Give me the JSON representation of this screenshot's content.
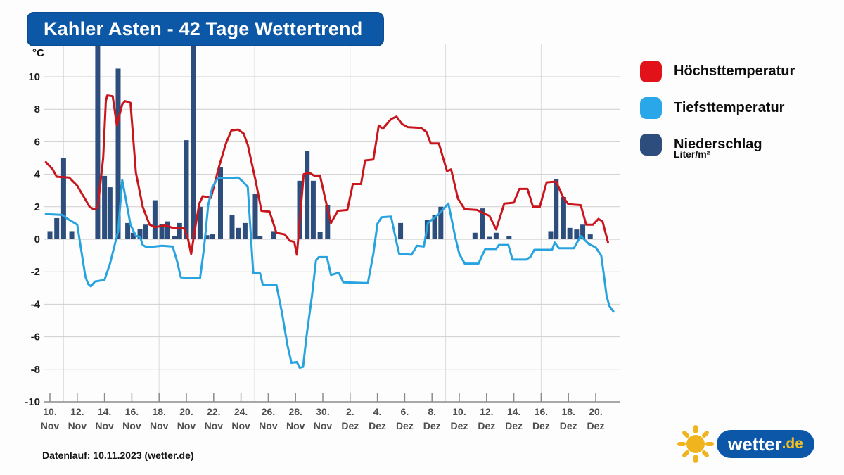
{
  "header": {
    "title": "Kahler Asten - 42 Tage Wettertrend"
  },
  "footer": {
    "text": "Datenlauf: 10.11.2023 (wetter.de)"
  },
  "logo": {
    "brand": "wetter",
    "tld": ".de",
    "pill_color": "#0d57a8",
    "sun_color": "#f0b41e"
  },
  "legend": {
    "items": [
      {
        "label": "Höchsttemperatur",
        "color": "#e2121b"
      },
      {
        "label": "Tiefsttemperatur",
        "color": "#2aa7e8"
      },
      {
        "label": "Niederschlag",
        "color": "#2d4e7d"
      }
    ],
    "precip_unit": "Liter/m²"
  },
  "chart_data": {
    "type": "mixed",
    "title": "Kahler Asten - 42 Tage Wettertrend",
    "y_axis": {
      "unit": "°C",
      "min": -10,
      "max": 10,
      "ticks": [
        10,
        8,
        6,
        4,
        2,
        0,
        -2,
        -4,
        -6,
        -8,
        -10
      ],
      "grid": true
    },
    "x_axis": {
      "unit": "date",
      "days_per_tick": 2,
      "tick_labels": [
        {
          "d": "10.",
          "m": "Nov"
        },
        {
          "d": "12.",
          "m": "Nov"
        },
        {
          "d": "14.",
          "m": "Nov"
        },
        {
          "d": "16.",
          "m": "Nov"
        },
        {
          "d": "18.",
          "m": "Nov"
        },
        {
          "d": "20.",
          "m": "Nov"
        },
        {
          "d": "22.",
          "m": "Nov"
        },
        {
          "d": "24.",
          "m": "Nov"
        },
        {
          "d": "26.",
          "m": "Nov"
        },
        {
          "d": "28.",
          "m": "Nov"
        },
        {
          "d": "30.",
          "m": "Nov"
        },
        {
          "d": "2.",
          "m": "Dez"
        },
        {
          "d": "4.",
          "m": "Dez"
        },
        {
          "d": "6.",
          "m": "Dez"
        },
        {
          "d": "8.",
          "m": "Dez"
        },
        {
          "d": "10.",
          "m": "Dez"
        },
        {
          "d": "12.",
          "m": "Dez"
        },
        {
          "d": "14.",
          "m": "Dez"
        },
        {
          "d": "16.",
          "m": "Dez"
        },
        {
          "d": "18.",
          "m": "Dez"
        },
        {
          "d": "20.",
          "m": "Dez"
        }
      ]
    },
    "series": [
      {
        "name": "Höchsttemperatur",
        "type": "line",
        "color": "#c9161d",
        "points": [
          [
            -0.3,
            4.75
          ],
          [
            0.2,
            4.3
          ],
          [
            0.5,
            3.85
          ],
          [
            1.4,
            3.8
          ],
          [
            2.0,
            3.3
          ],
          [
            2.9,
            2.0
          ],
          [
            3.2,
            1.85
          ],
          [
            3.5,
            1.95
          ],
          [
            3.9,
            5.0
          ],
          [
            4.1,
            8.5
          ],
          [
            4.2,
            8.85
          ],
          [
            4.6,
            8.8
          ],
          [
            4.9,
            7.0
          ],
          [
            5.3,
            8.3
          ],
          [
            5.5,
            8.5
          ],
          [
            5.9,
            8.4
          ],
          [
            6.3,
            4.1
          ],
          [
            6.8,
            2.0
          ],
          [
            7.3,
            0.9
          ],
          [
            7.7,
            0.75
          ],
          [
            8.5,
            0.85
          ],
          [
            9.0,
            0.7
          ],
          [
            9.8,
            0.7
          ],
          [
            10.1,
            0.1
          ],
          [
            10.35,
            -0.9
          ],
          [
            10.7,
            1.0
          ],
          [
            10.95,
            2.2
          ],
          [
            11.2,
            2.65
          ],
          [
            11.8,
            2.55
          ],
          [
            12.4,
            4.5
          ],
          [
            12.9,
            5.9
          ],
          [
            13.3,
            6.7
          ],
          [
            13.8,
            6.75
          ],
          [
            14.2,
            6.5
          ],
          [
            14.5,
            5.8
          ],
          [
            15.1,
            3.5
          ],
          [
            15.5,
            1.75
          ],
          [
            16.1,
            1.7
          ],
          [
            16.6,
            0.4
          ],
          [
            17.2,
            0.3
          ],
          [
            17.6,
            -0.1
          ],
          [
            17.9,
            -0.15
          ],
          [
            18.1,
            -0.95
          ],
          [
            18.6,
            4.0
          ],
          [
            19.0,
            4.1
          ],
          [
            19.4,
            3.9
          ],
          [
            19.8,
            3.9
          ],
          [
            20.2,
            2.4
          ],
          [
            20.6,
            1.0
          ],
          [
            21.1,
            1.75
          ],
          [
            21.8,
            1.8
          ],
          [
            22.2,
            3.4
          ],
          [
            22.8,
            3.4
          ],
          [
            23.1,
            4.85
          ],
          [
            23.7,
            4.9
          ],
          [
            24.1,
            7.0
          ],
          [
            24.4,
            6.8
          ],
          [
            25.0,
            7.4
          ],
          [
            25.4,
            7.55
          ],
          [
            25.8,
            7.1
          ],
          [
            26.2,
            6.9
          ],
          [
            27.2,
            6.85
          ],
          [
            27.6,
            6.6
          ],
          [
            27.9,
            5.9
          ],
          [
            28.5,
            5.9
          ],
          [
            29.1,
            4.2
          ],
          [
            29.4,
            4.3
          ],
          [
            29.9,
            2.5
          ],
          [
            30.4,
            1.85
          ],
          [
            31.3,
            1.8
          ],
          [
            31.9,
            1.55
          ],
          [
            32.2,
            1.45
          ],
          [
            32.7,
            0.6
          ],
          [
            33.3,
            2.2
          ],
          [
            34.0,
            2.25
          ],
          [
            34.4,
            3.1
          ],
          [
            35.0,
            3.1
          ],
          [
            35.4,
            2.0
          ],
          [
            35.9,
            2.0
          ],
          [
            36.4,
            3.5
          ],
          [
            37.1,
            3.55
          ],
          [
            37.6,
            2.6
          ],
          [
            38.0,
            2.15
          ],
          [
            38.9,
            2.1
          ],
          [
            39.3,
            0.9
          ],
          [
            39.8,
            0.9
          ],
          [
            40.2,
            1.25
          ],
          [
            40.5,
            1.1
          ],
          [
            40.9,
            -0.2
          ]
        ]
      },
      {
        "name": "Tiefsttemperatur",
        "type": "line",
        "color": "#27a3df",
        "points": [
          [
            -0.3,
            1.55
          ],
          [
            0.9,
            1.5
          ],
          [
            1.3,
            1.25
          ],
          [
            2.0,
            0.9
          ],
          [
            2.6,
            -2.3
          ],
          [
            2.8,
            -2.75
          ],
          [
            3.0,
            -2.9
          ],
          [
            3.3,
            -2.6
          ],
          [
            4.0,
            -2.5
          ],
          [
            4.4,
            -1.5
          ],
          [
            5.0,
            0.5
          ],
          [
            5.3,
            3.65
          ],
          [
            5.6,
            2.3
          ],
          [
            5.9,
            0.9
          ],
          [
            6.3,
            0.2
          ],
          [
            6.6,
            0.15
          ],
          [
            6.8,
            -0.35
          ],
          [
            7.1,
            -0.5
          ],
          [
            8.2,
            -0.4
          ],
          [
            9.0,
            -0.45
          ],
          [
            9.3,
            -1.3
          ],
          [
            9.6,
            -2.35
          ],
          [
            11.0,
            -2.4
          ],
          [
            11.3,
            -0.5
          ],
          [
            11.6,
            2.1
          ],
          [
            11.9,
            3.2
          ],
          [
            12.3,
            3.75
          ],
          [
            13.8,
            3.8
          ],
          [
            14.2,
            3.5
          ],
          [
            14.5,
            3.2
          ],
          [
            14.9,
            -2.1
          ],
          [
            15.4,
            -2.1
          ],
          [
            15.6,
            -2.8
          ],
          [
            16.6,
            -2.8
          ],
          [
            17.0,
            -4.5
          ],
          [
            17.4,
            -6.5
          ],
          [
            17.7,
            -7.6
          ],
          [
            18.1,
            -7.55
          ],
          [
            18.3,
            -7.9
          ],
          [
            18.55,
            -7.85
          ],
          [
            18.8,
            -6.0
          ],
          [
            19.2,
            -3.5
          ],
          [
            19.5,
            -1.3
          ],
          [
            19.7,
            -1.1
          ],
          [
            20.3,
            -1.1
          ],
          [
            20.6,
            -2.2
          ],
          [
            21.0,
            -2.1
          ],
          [
            21.2,
            -2.1
          ],
          [
            21.5,
            -2.65
          ],
          [
            23.3,
            -2.7
          ],
          [
            23.7,
            -0.9
          ],
          [
            24.0,
            0.95
          ],
          [
            24.3,
            1.35
          ],
          [
            25.0,
            1.4
          ],
          [
            25.4,
            -0.2
          ],
          [
            25.6,
            -0.9
          ],
          [
            26.5,
            -0.95
          ],
          [
            26.9,
            -0.4
          ],
          [
            27.4,
            -0.45
          ],
          [
            27.7,
            1.0
          ],
          [
            28.5,
            1.55
          ],
          [
            29.2,
            2.2
          ],
          [
            29.7,
            0.15
          ],
          [
            30.0,
            -0.9
          ],
          [
            30.4,
            -1.5
          ],
          [
            31.4,
            -1.5
          ],
          [
            31.9,
            -0.6
          ],
          [
            32.7,
            -0.6
          ],
          [
            32.9,
            -0.35
          ],
          [
            33.6,
            -0.35
          ],
          [
            33.9,
            -1.25
          ],
          [
            34.9,
            -1.25
          ],
          [
            35.2,
            -1.1
          ],
          [
            35.5,
            -0.65
          ],
          [
            36.8,
            -0.65
          ],
          [
            37.0,
            -0.2
          ],
          [
            37.3,
            -0.55
          ],
          [
            38.4,
            -0.55
          ],
          [
            38.9,
            0.2
          ],
          [
            39.5,
            -0.3
          ],
          [
            40.0,
            -0.5
          ],
          [
            40.4,
            -1.0
          ],
          [
            40.6,
            -2.2
          ],
          [
            40.8,
            -3.5
          ],
          [
            41.0,
            -4.1
          ],
          [
            41.3,
            -4.45
          ]
        ]
      },
      {
        "name": "Niederschlag",
        "type": "bar",
        "unit": "Liter/m²",
        "color": "#2d4e7d",
        "clipped_at_top_days": [
          3.5,
          10.5
        ],
        "points": [
          [
            0.0,
            0.5
          ],
          [
            0.5,
            1.3
          ],
          [
            1.0,
            5.0
          ],
          [
            1.6,
            0.5
          ],
          [
            3.5,
            12.1
          ],
          [
            4.0,
            3.9
          ],
          [
            4.4,
            3.2
          ],
          [
            5.0,
            10.5
          ],
          [
            5.7,
            1.0
          ],
          [
            6.1,
            0.4
          ],
          [
            6.6,
            0.65
          ],
          [
            7.0,
            0.9
          ],
          [
            7.7,
            2.4
          ],
          [
            8.2,
            0.95
          ],
          [
            8.6,
            1.1
          ],
          [
            9.1,
            0.2
          ],
          [
            9.5,
            1.0
          ],
          [
            10.0,
            6.1
          ],
          [
            10.5,
            12.1
          ],
          [
            11.0,
            2.0
          ],
          [
            11.5,
            0.25
          ],
          [
            11.9,
            0.3
          ],
          [
            12.5,
            4.45
          ],
          [
            13.35,
            1.5
          ],
          [
            13.8,
            0.7
          ],
          [
            14.3,
            1.0
          ],
          [
            15.05,
            2.8
          ],
          [
            15.4,
            0.2
          ],
          [
            16.4,
            0.5
          ],
          [
            18.3,
            3.6
          ],
          [
            18.85,
            5.45
          ],
          [
            19.3,
            3.6
          ],
          [
            19.8,
            0.45
          ],
          [
            20.35,
            2.1
          ],
          [
            25.7,
            1.0
          ],
          [
            27.65,
            1.2
          ],
          [
            28.2,
            1.5
          ],
          [
            28.65,
            2.0
          ],
          [
            31.15,
            0.4
          ],
          [
            31.7,
            1.9
          ],
          [
            32.2,
            0.15
          ],
          [
            32.7,
            0.4
          ],
          [
            33.65,
            0.2
          ],
          [
            36.7,
            0.5
          ],
          [
            37.1,
            3.7
          ],
          [
            37.65,
            2.6
          ],
          [
            38.1,
            0.7
          ],
          [
            38.6,
            0.6
          ],
          [
            39.05,
            0.9
          ],
          [
            39.6,
            0.3
          ]
        ]
      }
    ],
    "x_origin_label": "10. Nov 2023 = day 0"
  }
}
